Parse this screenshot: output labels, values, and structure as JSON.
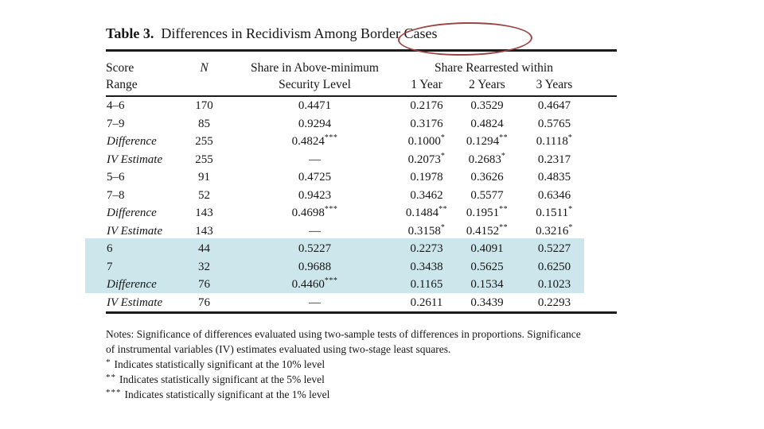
{
  "title": {
    "label": "Table 3.",
    "text": "Differences in Recidivism Among Border Cases",
    "circled_phrase": "Border Cases"
  },
  "annotation": {
    "circle_color": "#9c4444"
  },
  "table": {
    "highlight_color": "#cde6ec",
    "headers": {
      "col1_line1": "Score",
      "col1_line2": "Range",
      "col2": "N",
      "col3_line1": "Share in Above-minimum",
      "col3_line2": "Security Level",
      "group": "Share Rearrested within",
      "sub": [
        "1 Year",
        "2 Years",
        "3 Years"
      ]
    },
    "rows": [
      {
        "label": "4–6",
        "italic": false,
        "n": "170",
        "share": "0.4471",
        "share_stars": "",
        "y1": "0.2176",
        "y1_stars": "",
        "y2": "0.3529",
        "y2_stars": "",
        "y3": "0.4647",
        "y3_stars": "",
        "highlight": false
      },
      {
        "label": "7–9",
        "italic": false,
        "n": "85",
        "share": "0.9294",
        "share_stars": "",
        "y1": "0.3176",
        "y1_stars": "",
        "y2": "0.4824",
        "y2_stars": "",
        "y3": "0.5765",
        "y3_stars": "",
        "highlight": false
      },
      {
        "label": "Difference",
        "italic": true,
        "n": "255",
        "share": "0.4824",
        "share_stars": "***",
        "y1": "0.1000",
        "y1_stars": "*",
        "y2": "0.1294",
        "y2_stars": "**",
        "y3": "0.1118",
        "y3_stars": "*",
        "highlight": false
      },
      {
        "label": "IV Estimate",
        "italic": true,
        "n": "255",
        "share": "—",
        "share_stars": "",
        "y1": "0.2073",
        "y1_stars": "*",
        "y2": "0.2683",
        "y2_stars": "*",
        "y3": "0.2317",
        "y3_stars": "",
        "highlight": false
      },
      {
        "label": "5–6",
        "italic": false,
        "n": "91",
        "share": "0.4725",
        "share_stars": "",
        "y1": "0.1978",
        "y1_stars": "",
        "y2": "0.3626",
        "y2_stars": "",
        "y3": "0.4835",
        "y3_stars": "",
        "highlight": false
      },
      {
        "label": "7–8",
        "italic": false,
        "n": "52",
        "share": "0.9423",
        "share_stars": "",
        "y1": "0.3462",
        "y1_stars": "",
        "y2": "0.5577",
        "y2_stars": "",
        "y3": "0.6346",
        "y3_stars": "",
        "highlight": false
      },
      {
        "label": "Difference",
        "italic": true,
        "n": "143",
        "share": "0.4698",
        "share_stars": "***",
        "y1": "0.1484",
        "y1_stars": "**",
        "y2": "0.1951",
        "y2_stars": "**",
        "y3": "0.1511",
        "y3_stars": "*",
        "highlight": false
      },
      {
        "label": "IV Estimate",
        "italic": true,
        "n": "143",
        "share": "—",
        "share_stars": "",
        "y1": "0.3158",
        "y1_stars": "*",
        "y2": "0.4152",
        "y2_stars": "**",
        "y3": "0.3216",
        "y3_stars": "*",
        "highlight": false
      },
      {
        "label": "6",
        "italic": false,
        "n": "44",
        "share": "0.5227",
        "share_stars": "",
        "y1": "0.2273",
        "y1_stars": "",
        "y2": "0.4091",
        "y2_stars": "",
        "y3": "0.5227",
        "y3_stars": "",
        "highlight": true
      },
      {
        "label": "7",
        "italic": false,
        "n": "32",
        "share": "0.9688",
        "share_stars": "",
        "y1": "0.3438",
        "y1_stars": "",
        "y2": "0.5625",
        "y2_stars": "",
        "y3": "0.6250",
        "y3_stars": "",
        "highlight": true
      },
      {
        "label": "Difference",
        "italic": true,
        "n": "76",
        "share": "0.4460",
        "share_stars": "***",
        "y1": "0.1165",
        "y1_stars": "",
        "y2": "0.1534",
        "y2_stars": "",
        "y3": "0.1023",
        "y3_stars": "",
        "highlight": true
      },
      {
        "label": "IV Estimate",
        "italic": true,
        "n": "76",
        "share": "—",
        "share_stars": "",
        "y1": "0.2611",
        "y1_stars": "",
        "y2": "0.3439",
        "y2_stars": "",
        "y3": "0.2293",
        "y3_stars": "",
        "highlight": false
      }
    ]
  },
  "notes": {
    "line1": "Notes: Significance of differences evaluated using two-sample tests of differences in proportions. Significance",
    "line2": "of instrumental variables (IV) estimates evaluated using two-stage least squares.",
    "star_lines": [
      {
        "stars": "*",
        "text": "Indicates statistically significant at the 10% level"
      },
      {
        "stars": "**",
        "text": "Indicates statistically significant at the 5% level"
      },
      {
        "stars": "***",
        "text": "Indicates statistically significant at the 1% level"
      }
    ]
  }
}
